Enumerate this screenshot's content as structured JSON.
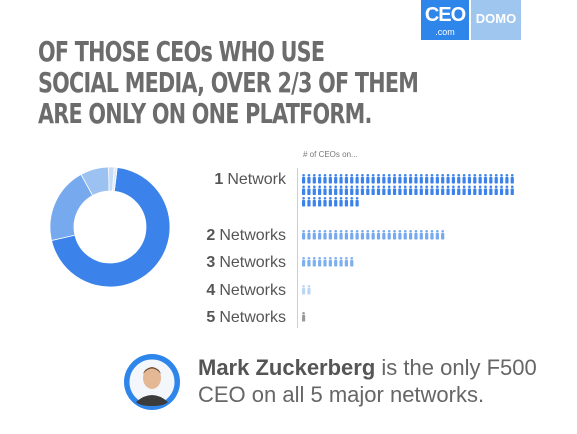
{
  "logo": {
    "ceo_text": "CEO",
    "ceo_domain": ".com",
    "domo_text": "DOMO"
  },
  "headline": {
    "lines": [
      "OF THOSE CEOs WHO USE",
      "SOCIAL MEDIA, OVER 2/3 OF THEM",
      "ARE ONLY ON ONE PLATFORM."
    ]
  },
  "colors": {
    "accent": "#2f86ea",
    "donut": [
      "#3b82ea",
      "#77a9ef",
      "#9cc2f2",
      "#c5dcf7",
      "#dbe9f9"
    ],
    "icon_rows": [
      "#3b82ea",
      "#77a9ef",
      "#7fb0ee",
      "#bcd6f5",
      "#9a9a9a"
    ]
  },
  "chart_data": {
    "type": "pie",
    "axis_caption": "# of CEOs on...",
    "categories": [
      "1 Network",
      "2 Networks",
      "3 Networks",
      "4 Networks",
      "5 Networks"
    ],
    "values": [
      91,
      27,
      10,
      2,
      1
    ]
  },
  "footer": {
    "name": "Mark Zuckerberg",
    "text_rest": "is the only F500 CEO on all 5 major networks.",
    "avatar_icon": "person-portrait-icon"
  }
}
